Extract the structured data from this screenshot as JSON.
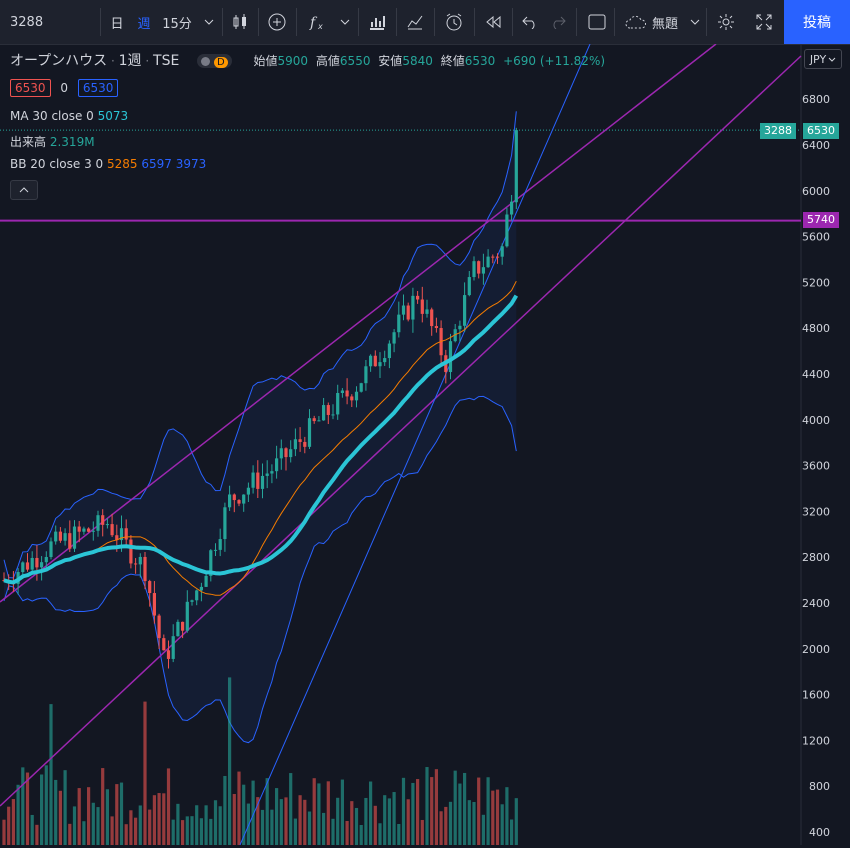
{
  "toolbar": {
    "symbol": "3288",
    "interval_day": "日",
    "interval_week": "週",
    "interval_15m": "15分",
    "theme_label": "無題",
    "post_label": "投稿"
  },
  "legend": {
    "name": "オープンハウス",
    "timeframe": "1週",
    "exchange": "TSE",
    "badge": "D",
    "open_label": "始値",
    "open": "5900",
    "high_label": "高値",
    "high": "6550",
    "low_label": "安値",
    "low": "5840",
    "close_label": "終値",
    "close": "6530",
    "change": "+690 (+11.82%)",
    "bid": "6530",
    "spread": "0",
    "ask": "6530",
    "ma_label": "MA 30 close 0",
    "ma_value": "5073",
    "vol_label": "出来高",
    "vol_value": "2.319M",
    "bb_label": "BB 20 close 3 0",
    "bb_mid": "5285",
    "bb_up": "6597",
    "bb_low": "3973"
  },
  "currency": "JPY",
  "badges": {
    "symbol": "3288",
    "last": "6530",
    "hline": "5740"
  },
  "colors": {
    "up": "#26a69a",
    "down": "#ef5350",
    "ma": "#2bc5d6",
    "bb": "#2962ff",
    "line": "#9c27b0",
    "orange": "#f57c00"
  },
  "chart_data": {
    "type": "candlestick",
    "y_ticks": [
      400,
      800,
      1200,
      1600,
      2000,
      2400,
      2800,
      3200,
      3600,
      4000,
      4400,
      4800,
      5200,
      5600,
      6000,
      6400,
      6800
    ],
    "ylim": [
      320,
      7150
    ],
    "hline": 5740
  }
}
